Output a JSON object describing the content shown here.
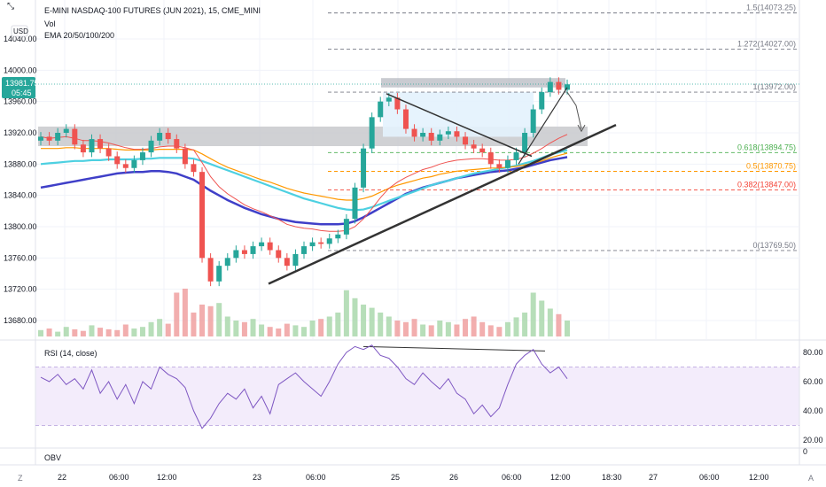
{
  "header": {
    "title": "E-MINI NASDAQ-100 FUTURES (JUN 2021), 15, CME_MINI",
    "vol_label": "Vol",
    "ema_label": "EMA 20/50/100/200",
    "currency_button": "USD"
  },
  "price_axis": {
    "ticks": [
      "14040.00",
      "14000.00",
      "13960.00",
      "13920.00",
      "13880.00",
      "13840.00",
      "13800.00",
      "13760.00",
      "13720.00",
      "13680.00"
    ],
    "tick_values": [
      14040,
      14000,
      13960,
      13920,
      13880,
      13840,
      13800,
      13760,
      13720,
      13680
    ],
    "current_price": "13981.75",
    "countdown": "05:45"
  },
  "fib_levels": [
    {
      "label": "1.5(14073.25)",
      "value": 14073.25,
      "color": "#787b86"
    },
    {
      "label": "1.272(14027.00)",
      "value": 14027.0,
      "color": "#787b86"
    },
    {
      "label": "1(13972.00)",
      "value": 13972.0,
      "color": "#787b86"
    },
    {
      "label": "0.618(13894.75)",
      "value": 13894.75,
      "color": "#4caf50"
    },
    {
      "label": "0.5(13870.75)",
      "value": 13870.75,
      "color": "#ff9800"
    },
    {
      "label": "0.382(13847.00)",
      "value": 13847.0,
      "color": "#f44336"
    },
    {
      "label": "0(13769.50)",
      "value": 13769.5,
      "color": "#787b86"
    }
  ],
  "rsi": {
    "title": "RSI (14, close)",
    "ticks": [
      "80.00",
      "60.00",
      "40.00",
      "20.00"
    ],
    "tick_values": [
      80,
      60,
      40,
      20
    ],
    "band_upper": 70,
    "band_lower": 30
  },
  "obv": {
    "title": "OBV",
    "tick": "0"
  },
  "time_axis": {
    "labels": [
      "22",
      "06:00",
      "12:00",
      "23",
      "06:00",
      "25",
      "26",
      "06:00",
      "12:00",
      "18:30",
      "27",
      "06:00",
      "12:00"
    ],
    "corner_left": "Z",
    "corner_right": "A"
  },
  "colors": {
    "up": "#26a69a",
    "down": "#ef5350",
    "ema20": "#ef5350",
    "ema50": "#ff9800",
    "ema100": "#4dd0e1",
    "ema200": "#3f3fc8",
    "rsi": "#7e57c2",
    "rsi_band": "#f3ecfb",
    "price_tag": "#26a69a"
  },
  "chart_data": {
    "type": "candlestick",
    "symbol": "E-MINI NASDAQ-100 FUTURES (JUN 2021)",
    "interval": "15",
    "exchange": "CME_MINI",
    "ylim": [
      13650,
      14090
    ],
    "x_labels": [
      "22",
      "06:00",
      "12:00",
      "23",
      "06:00",
      "25",
      "26",
      "06:00",
      "12:00",
      "18:30",
      "27",
      "06:00",
      "12:00"
    ],
    "current_price": 13981.75,
    "closes": [
      13915,
      13910,
      13920,
      13925,
      13905,
      13895,
      13912,
      13900,
      13890,
      13880,
      13875,
      13885,
      13895,
      13910,
      13920,
      13912,
      13900,
      13880,
      13870,
      13760,
      13730,
      13750,
      13760,
      13770,
      13765,
      13775,
      13780,
      13770,
      13760,
      13750,
      13765,
      13775,
      13780,
      13778,
      13785,
      13790,
      13810,
      13850,
      13900,
      13940,
      13960,
      13965,
      13950,
      13925,
      13915,
      13920,
      13910,
      13918,
      13922,
      13915,
      13905,
      13900,
      13895,
      13880,
      13875,
      13885,
      13895,
      13920,
      13950,
      13972,
      13985,
      13975,
      13982
    ],
    "rsi_range": [
      20,
      85
    ],
    "rsi_values": [
      63,
      60,
      65,
      58,
      62,
      55,
      68,
      52,
      60,
      48,
      58,
      45,
      60,
      55,
      70,
      65,
      62,
      56,
      40,
      28,
      35,
      45,
      52,
      48,
      55,
      42,
      50,
      38,
      58,
      62,
      66,
      60,
      55,
      50,
      60,
      72,
      80,
      84,
      82,
      85,
      78,
      76,
      70,
      62,
      58,
      66,
      60,
      55,
      62,
      52,
      48,
      38,
      44,
      36,
      42,
      58,
      72,
      78,
      82,
      72,
      66,
      70,
      62
    ],
    "ema20": [
      13915,
      13913,
      13914,
      13915,
      13913,
      13910,
      13910,
      13909,
      13907,
      13904,
      13901,
      13899,
      13899,
      13900,
      13902,
      13903,
      13903,
      13901,
      13898,
      13882,
      13864,
      13851,
      13842,
      13835,
      13828,
      13823,
      13819,
      13814,
      13809,
      13803,
      13800,
      13798,
      13797,
      13795,
      13794,
      13794,
      13795,
      13800,
      13810,
      13823,
      13837,
      13849,
      13857,
      13863,
      13868,
      13873,
      13876,
      13880,
      13883,
      13885,
      13886,
      13887,
      13887,
      13886,
      13885,
      13885,
      13886,
      13889,
      13894,
      13900,
      13907,
      13913,
      13918
    ],
    "ema50": [
      13900,
      13900,
      13900,
      13901,
      13901,
      13900,
      13900,
      13900,
      13900,
      13899,
      13898,
      13898,
      13898,
      13898,
      13899,
      13899,
      13899,
      13899,
      13898,
      13893,
      13887,
      13881,
      13876,
      13872,
      13868,
      13864,
      13860,
      13857,
      13853,
      13849,
      13846,
      13843,
      13841,
      13839,
      13837,
      13835,
      13834,
      13834,
      13836,
      13839,
      13844,
      13849,
      13853,
      13856,
      13859,
      13862,
      13864,
      13867,
      13869,
      13871,
      13872,
      13873,
      13874,
      13875,
      13875,
      13876,
      13877,
      13879,
      13881,
      13884,
      13888,
      13891,
      13894
    ],
    "ema100": [
      13880,
      13881,
      13882,
      13883,
      13884,
      13884,
      13885,
      13885,
      13886,
      13886,
      13886,
      13886,
      13887,
      13887,
      13888,
      13888,
      13888,
      13888,
      13887,
      13884,
      13880,
      13876,
      13872,
      13868,
      13864,
      13860,
      13856,
      13852,
      13848,
      13844,
      13840,
      13836,
      13833,
      13830,
      13827,
      13824,
      13822,
      13821,
      13822,
      13825,
      13829,
      13833,
      13837,
      13841,
      13845,
      13849,
      13853,
      13856,
      13859,
      13862,
      13865,
      13868,
      13870,
      13872,
      13874,
      13876,
      13878,
      13881,
      13884,
      13888,
      13892,
      13895,
      13898
    ],
    "ema200": [
      13850,
      13852,
      13854,
      13856,
      13858,
      13860,
      13862,
      13864,
      13866,
      13868,
      13869,
      13870,
      13870,
      13871,
      13871,
      13870,
      13868,
      13864,
      13860,
      13853,
      13846,
      13840,
      13834,
      13829,
      13824,
      13820,
      13816,
      13813,
      13810,
      13808,
      13806,
      13805,
      13804,
      13803,
      13803,
      13803,
      13804,
      13807,
      13812,
      13818,
      13824,
      13830,
      13836,
      13842,
      13846,
      13850,
      13853,
      13856,
      13859,
      13862,
      13864,
      13866,
      13868,
      13870,
      13871,
      13872,
      13874,
      13876,
      13879,
      13882,
      13885,
      13887,
      13889
    ]
  }
}
